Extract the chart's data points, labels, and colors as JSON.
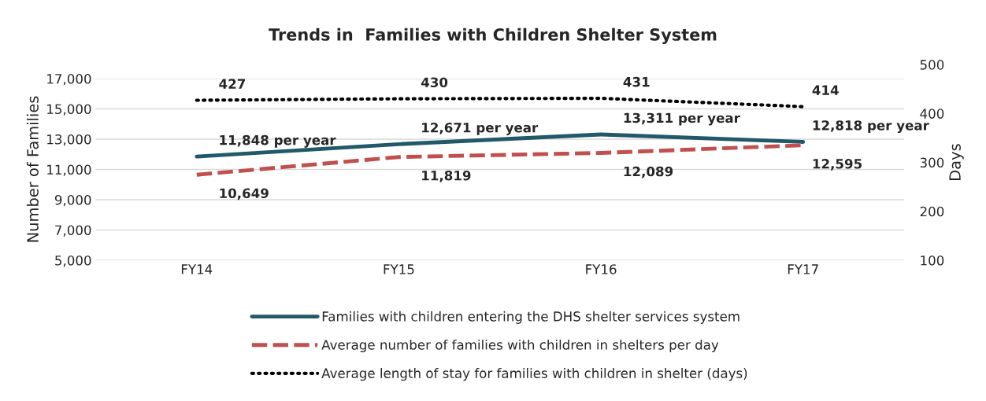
{
  "chart_data": {
    "type": "line",
    "title": "Trends in  Families with Children Shelter System",
    "categories": [
      "FY14",
      "FY15",
      "FY16",
      "FY17"
    ],
    "ylabel": "Number of Families",
    "y2label": "Days",
    "ylim": [
      5000,
      17000
    ],
    "yticks": [
      {
        "value": 5000,
        "label": "5,000"
      },
      {
        "value": 7000,
        "label": "7,000"
      },
      {
        "value": 9000,
        "label": "9,000"
      },
      {
        "value": 11000,
        "label": "11,000"
      },
      {
        "value": 13000,
        "label": "13,000"
      },
      {
        "value": 15000,
        "label": "15,000"
      },
      {
        "value": 17000,
        "label": "17,000"
      }
    ],
    "y2lim": [
      100,
      500
    ],
    "y2ticks": [
      100,
      200,
      300,
      400,
      500
    ],
    "grid": "y",
    "legend": "bottom",
    "marker": "none",
    "series": [
      {
        "name": "Families with children entering the DHS shelter services system",
        "color": "#215968",
        "line_style": "solid",
        "values": [
          11848,
          12671,
          13311,
          12818
        ],
        "value_labels": [
          "11,848 per year",
          "12,671 per year",
          "13,311 per year",
          "12,818 per year"
        ]
      },
      {
        "name": "Average number of families with children in shelters per day",
        "color": "#c0504d",
        "line_style": "dashed",
        "values": [
          10649,
          11819,
          12089,
          12595
        ],
        "value_labels": [
          "10,649",
          "11,819",
          "12,089",
          "12,595"
        ]
      },
      {
        "name": "Average length of stay for families with children in shelter (days)",
        "color": "#000000",
        "line_style": "dotted",
        "axis": "y2",
        "values": [
          427,
          430,
          431,
          414
        ],
        "value_labels": [
          "427",
          "430",
          "431",
          "414"
        ]
      }
    ]
  }
}
